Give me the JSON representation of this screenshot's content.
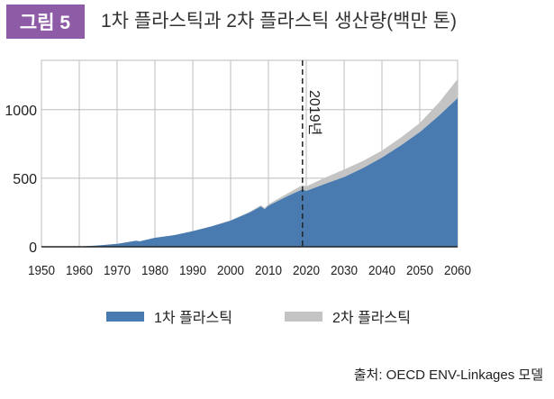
{
  "figure": {
    "badge": "그림 5",
    "badge_color": "#8e5ba6",
    "source": "출처: OECD ENV-Linkages 모델"
  },
  "chart_data": {
    "type": "area",
    "stacked": true,
    "title": "1차 플라스틱과 2차 플라스틱 생산량(백만 톤)",
    "xlabel": "",
    "ylabel": "",
    "xlim": [
      1950,
      2060
    ],
    "ylim": [
      0,
      1360
    ],
    "grid": true,
    "legend_position": "bottom",
    "x_ticks": [
      "1950",
      "1960",
      "1970",
      "1980",
      "1990",
      "2000",
      "2010",
      "2020",
      "2030",
      "2040",
      "2050",
      "2060"
    ],
    "y_ticks": [
      "0",
      "500",
      "1000"
    ],
    "annotation": {
      "label": "2019년",
      "x": 2019,
      "style": "dashed vertical line"
    },
    "x": [
      1950,
      1955,
      1960,
      1965,
      1970,
      1975,
      1976,
      1980,
      1985,
      1990,
      1995,
      2000,
      2005,
      2008,
      2009,
      2010,
      2015,
      2019,
      2020,
      2025,
      2030,
      2035,
      2040,
      2045,
      2050,
      2055,
      2060
    ],
    "series": [
      {
        "name": "1차 플라스틱",
        "color": "#4a7bb0",
        "values": [
          0,
          0,
          2,
          10,
          22,
          45,
          40,
          66,
          85,
          114,
          150,
          191,
          250,
          295,
          275,
          300,
          370,
          420,
          408,
          460,
          509,
          575,
          651,
          740,
          837,
          955,
          1085
        ]
      },
      {
        "name": "2차 플라스틱",
        "color": "#c4c4c4",
        "values": [
          0,
          0,
          0,
          0,
          0,
          0,
          0,
          0,
          0,
          0,
          1,
          2,
          5,
          8,
          8,
          11,
          18,
          30,
          32,
          45,
          55,
          52,
          51,
          56,
          66,
          95,
          139
        ]
      }
    ]
  }
}
